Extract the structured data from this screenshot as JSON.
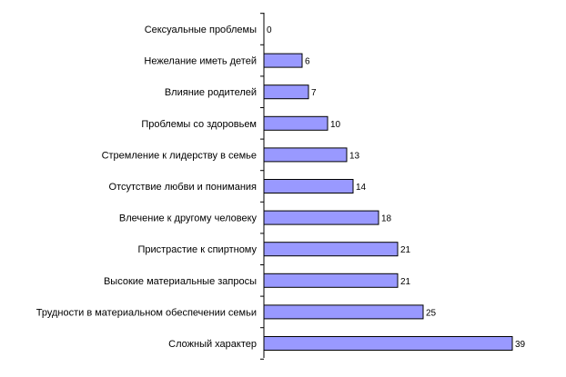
{
  "chart_data": {
    "type": "bar",
    "orientation": "horizontal",
    "title": "",
    "xlabel": "",
    "ylabel": "",
    "grid": false,
    "legend": "none",
    "xlim": [
      0,
      39
    ],
    "categories": [
      "Сексуальные проблемы",
      "Нежелание иметь детей",
      "Влияние родителей",
      "Проблемы со здоровьем",
      "Стремление к лидерству в семье",
      "Отсутствие любви и понимания",
      "Влечение к другому человеку",
      "Пристрастие к спиртному",
      "Высокие материальные запросы",
      "Трудности в материальном обеспечении семьи",
      "Сложный  характер"
    ],
    "values": [
      0,
      6,
      7,
      10,
      13,
      14,
      18,
      21,
      21,
      25,
      39
    ],
    "value_labels": [
      "0",
      "6",
      "7",
      "10",
      "13",
      "14",
      "18",
      "21",
      "21",
      "25",
      "39"
    ],
    "colors": {
      "bar_fill": "#9999ff",
      "bar_stroke": "#000000",
      "axis": "#000000"
    }
  }
}
